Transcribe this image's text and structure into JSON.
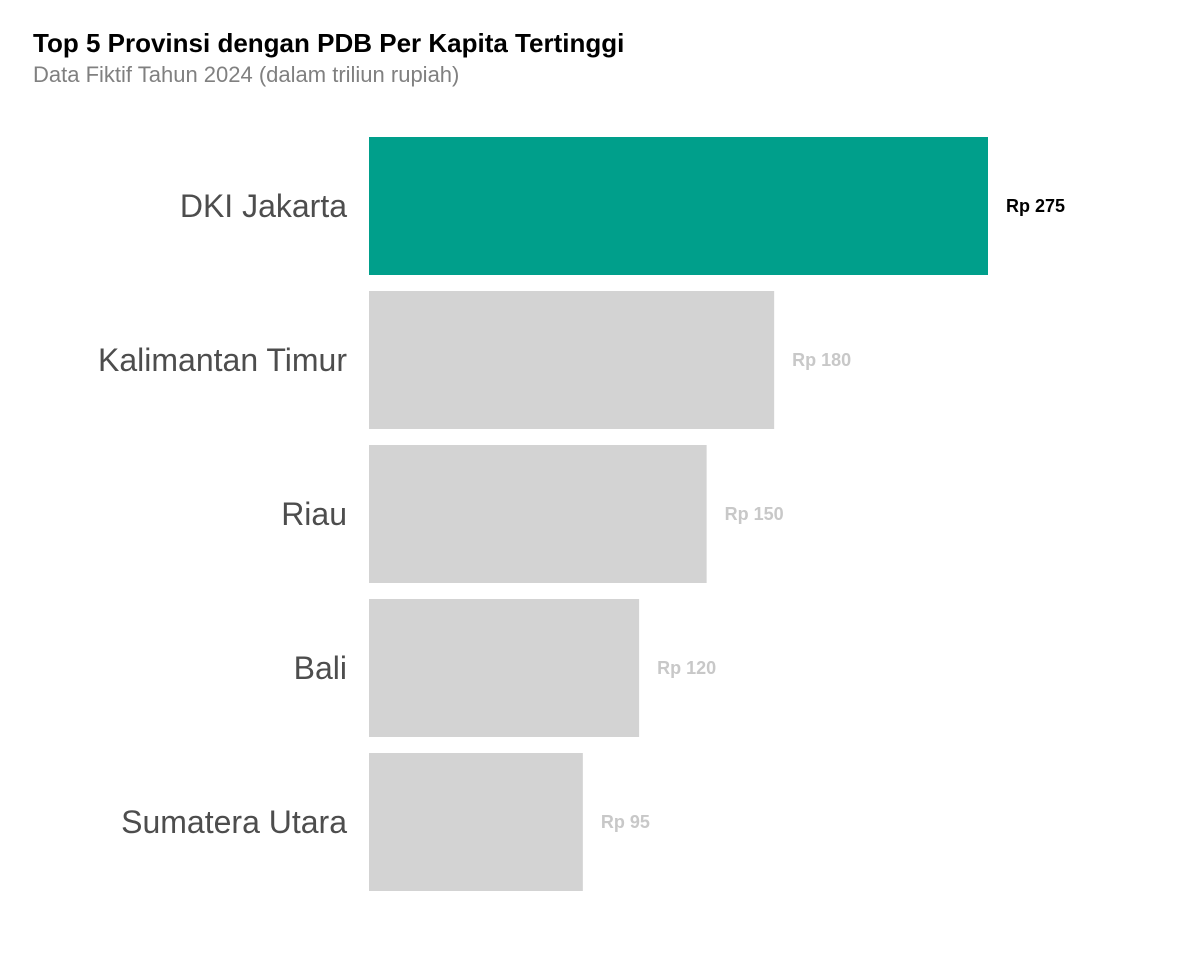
{
  "chart_data": {
    "type": "bar",
    "orientation": "horizontal",
    "title": "Top 5 Provinsi dengan PDB Per Kapita Tertinggi",
    "subtitle": "Data Fiktif Tahun 2024 (dalam triliun rupiah)",
    "categories": [
      "DKI Jakarta",
      "Kalimantan Timur",
      "Riau",
      "Bali",
      "Sumatera Utara"
    ],
    "values": [
      275,
      180,
      150,
      120,
      95
    ],
    "value_labels": [
      "Rp 275",
      "Rp 180",
      "Rp 150",
      "Rp 120",
      "Rp 95"
    ],
    "highlight_index": 0,
    "grid": false,
    "legend": "none",
    "colors": {
      "highlight_bar": "#009f8b",
      "default_bar": "#d3d3d3",
      "highlight_label": "#000000",
      "default_label": "#c8c8c8",
      "category_label": "#4d4d4d"
    }
  }
}
